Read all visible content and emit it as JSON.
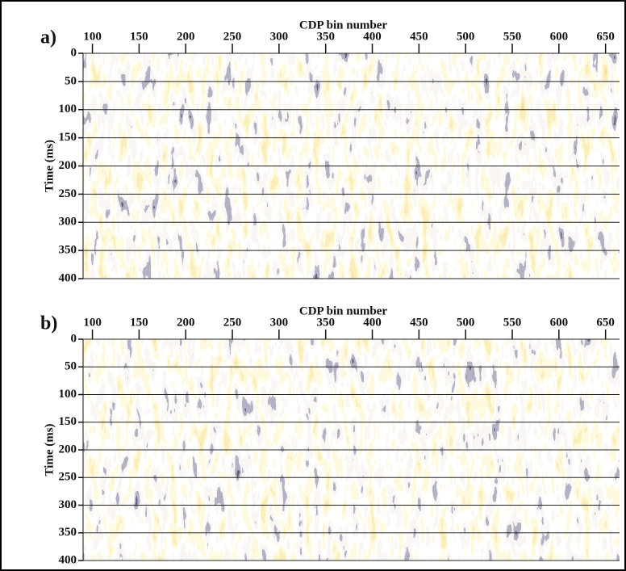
{
  "chart_data": [
    {
      "type": "seismic",
      "panel_label": "a)",
      "xlabel": "CDP bin number",
      "ylabel": "Time (ms)",
      "xlim": [
        90,
        665
      ],
      "xticks": [
        100,
        150,
        200,
        250,
        300,
        350,
        400,
        450,
        500,
        550,
        600,
        650
      ],
      "ylim": [
        0,
        400
      ],
      "yticks": [
        0,
        50,
        100,
        150,
        200,
        250,
        300,
        350,
        400
      ],
      "y_inverted": true,
      "grid": true
    },
    {
      "type": "seismic",
      "panel_label": "b)",
      "xlabel": "CDP bin number",
      "ylabel": "Time (ms)",
      "xlim": [
        90,
        665
      ],
      "xticks": [
        100,
        150,
        200,
        250,
        300,
        350,
        400,
        450,
        500,
        550,
        600,
        650
      ],
      "ylim": [
        0,
        400
      ],
      "yticks": [
        0,
        50,
        100,
        150,
        200,
        250,
        300,
        350,
        400
      ],
      "y_inverted": true,
      "grid": true
    }
  ]
}
